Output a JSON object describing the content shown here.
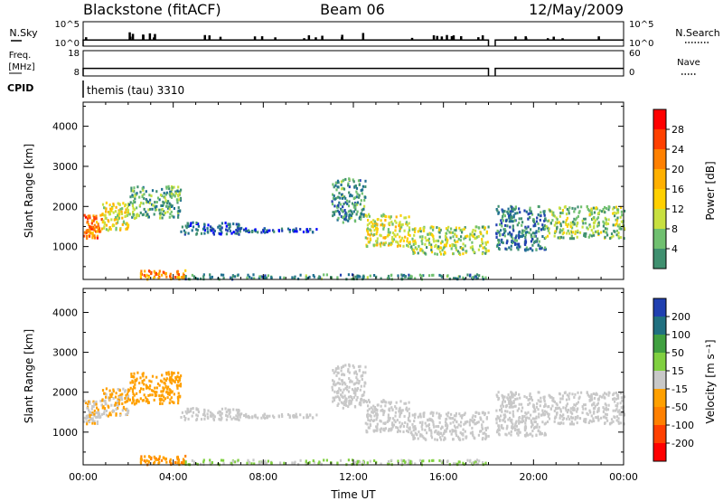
{
  "header": {
    "station": "Blackstone (fitACF)",
    "beam": "Beam 06",
    "date": "12/May/2009"
  },
  "nsky_panel": {
    "left_label": "N.Sky",
    "right_label": "N.Search",
    "left_ticks": [
      "10^5",
      "10^0"
    ],
    "right_ticks": [
      "10^5",
      "10^0"
    ],
    "baseline_fraction": 0.25,
    "gap_hours": [
      18.0,
      18.3
    ]
  },
  "freq_panel": {
    "left_label_1": "Freq.",
    "left_label_2": "[MHz]",
    "right_label": "Nave",
    "left_ticks": [
      "18",
      "8"
    ],
    "right_ticks": [
      "60",
      "0"
    ],
    "baseline_fraction": 0.3,
    "gap_hours": [
      18.0,
      18.3
    ]
  },
  "cpid": {
    "label": "CPID",
    "program": "themis (tau) 3310"
  },
  "power_panel": {
    "ylabel": "Slant Range [km]",
    "yticks": [
      "4000",
      "3000",
      "2000",
      "1000"
    ],
    "colorbar_label": "Power [dB]",
    "colorbar_ticks": [
      "28",
      "24",
      "20",
      "16",
      "12",
      "8",
      "4"
    ],
    "colors": [
      "#ff0000",
      "#ff4000",
      "#ff8000",
      "#ffb000",
      "#ffd000",
      "#c8e040",
      "#70c070",
      "#409070",
      "#207090",
      "#2040b0",
      "#0000ff"
    ]
  },
  "velocity_panel": {
    "ylabel": "Slant Range [km]",
    "yticks": [
      "4000",
      "3000",
      "2000",
      "1000"
    ],
    "colorbar_label": "Velocity [m s⁻¹]",
    "colorbar_ticks": [
      "200",
      "100",
      "50",
      "15",
      "-15",
      "-50",
      "-100",
      "-200"
    ],
    "colors": [
      "#ff0000",
      "#ff4000",
      "#ff8000",
      "#ffa000",
      "#c8c8c8",
      "#80d040",
      "#40a040",
      "#207080",
      "#2040b0"
    ]
  },
  "x_axis": {
    "label": "Time UT",
    "ticks": [
      "00:00",
      "04:00",
      "08:00",
      "12:00",
      "16:00",
      "20:00",
      "00:00"
    ]
  },
  "chart_data": {
    "type": "heatmap",
    "title": "Blackstone (fitACF) Beam 06 12/May/2009",
    "xlabel": "Time UT",
    "ylabel": "Slant Range [km]",
    "xlim": [
      0,
      24
    ],
    "ylim": [
      180,
      4600
    ],
    "power_range_db": [
      0,
      32
    ],
    "velocity_range": [
      -250,
      250
    ],
    "scatter_bands": [
      {
        "t0": 0.0,
        "t1": 0.8,
        "r_low": 1200,
        "r_high": 1800,
        "power": 25,
        "velocity": -20
      },
      {
        "t0": 0.8,
        "t1": 2.0,
        "r_low": 1400,
        "r_high": 2100,
        "power": 18,
        "velocity": -30
      },
      {
        "t0": 2.0,
        "t1": 4.3,
        "r_low": 1700,
        "r_high": 2500,
        "power": 12,
        "velocity": -60
      },
      {
        "t0": 4.3,
        "t1": 7.0,
        "r_low": 1300,
        "r_high": 1600,
        "power": 6,
        "velocity": 0
      },
      {
        "t0": 7.0,
        "t1": 10.5,
        "r_low": 1350,
        "r_high": 1450,
        "power": 6,
        "velocity": 0
      },
      {
        "t0": 11.0,
        "t1": 12.5,
        "r_low": 1600,
        "r_high": 2700,
        "power": 10,
        "velocity": 0
      },
      {
        "t0": 12.5,
        "t1": 14.5,
        "r_low": 1000,
        "r_high": 1800,
        "power": 17,
        "velocity": 0
      },
      {
        "t0": 14.5,
        "t1": 18.0,
        "r_low": 800,
        "r_high": 1500,
        "power": 15,
        "velocity": 0
      },
      {
        "t0": 18.3,
        "t1": 20.5,
        "r_low": 900,
        "r_high": 2000,
        "power": 8,
        "velocity": 0
      },
      {
        "t0": 20.5,
        "t1": 24.0,
        "r_low": 1200,
        "r_high": 2000,
        "power": 14,
        "velocity": 0
      },
      {
        "t0": 2.5,
        "t1": 4.5,
        "r_low": 180,
        "r_high": 400,
        "power": 24,
        "velocity": -80
      },
      {
        "t0": 4.5,
        "t1": 18.0,
        "r_low": 180,
        "r_high": 300,
        "power": 10,
        "velocity": 30
      }
    ]
  }
}
